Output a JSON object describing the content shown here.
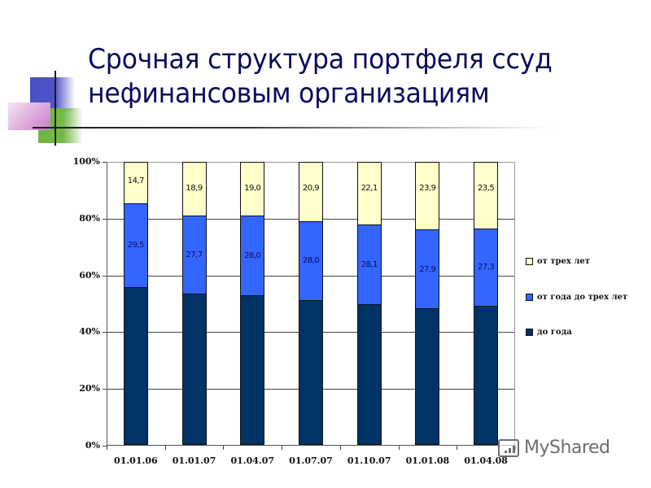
{
  "slide": {
    "title_line1": "Срочная структура портфеля ссуд",
    "title_line2": "нефинансовым организациям"
  },
  "watermark": {
    "text": "MyShared",
    "icon": "presentation-chart-icon"
  },
  "colors": {
    "short_term": "#003366",
    "mid_term": "#3366FF",
    "long_term": "#FFFFCC",
    "title": "#0B0B5C"
  },
  "axis": {
    "y_ticks": [
      "0%",
      "20%",
      "40%",
      "60%",
      "80%",
      "100%"
    ],
    "x_ticks": [
      "01.01.06",
      "01.01.07",
      "01.04.07",
      "01.07.07",
      "01.10.07",
      "01.01.08",
      "01.04.08"
    ]
  },
  "legend": [
    {
      "label": "от трех лет",
      "color": "#FFFFCC"
    },
    {
      "label": "от года до трех лет",
      "color": "#3366FF"
    },
    {
      "label": "до года",
      "color": "#003366"
    }
  ],
  "bars": [
    {
      "date": "01.01.06",
      "long": "14,7",
      "mid": "29,5",
      "short_pct": 55.8,
      "mid_pct": 29.5,
      "long_pct": 14.7
    },
    {
      "date": "01.01.07",
      "long": "18,9",
      "mid": "27,7",
      "short_pct": 53.4,
      "mid_pct": 27.7,
      "long_pct": 18.9
    },
    {
      "date": "01.04.07",
      "long": "19,0",
      "mid": "28,0",
      "short_pct": 53.0,
      "mid_pct": 28.0,
      "long_pct": 19.0
    },
    {
      "date": "01.07.07",
      "long": "20,9",
      "mid": "28,0",
      "short_pct": 51.1,
      "mid_pct": 28.0,
      "long_pct": 20.9
    },
    {
      "date": "01.10.07",
      "long": "22,1",
      "mid": "28,1",
      "short_pct": 49.8,
      "mid_pct": 28.1,
      "long_pct": 22.1
    },
    {
      "date": "01.01.08",
      "long": "23,9",
      "mid": "27,9",
      "short_pct": 48.2,
      "mid_pct": 27.9,
      "long_pct": 23.9
    },
    {
      "date": "01.04.08",
      "long": "23,5",
      "mid": "27,3",
      "short_pct": 49.2,
      "mid_pct": 27.3,
      "long_pct": 23.5
    }
  ],
  "chart_data": {
    "type": "bar",
    "stacked": true,
    "percent_stacked": true,
    "title": "Срочная структура портфеля ссуд нефинансовым организациям",
    "xlabel": "",
    "ylabel": "",
    "categories": [
      "01.01.06",
      "01.01.07",
      "01.04.07",
      "01.07.07",
      "01.10.07",
      "01.01.08",
      "01.04.08"
    ],
    "series": [
      {
        "name": "до года",
        "color": "#003366",
        "values": [
          55.8,
          53.4,
          53.0,
          51.1,
          49.8,
          48.2,
          49.2
        ],
        "labeled": false
      },
      {
        "name": "от года до трех лет",
        "color": "#3366FF",
        "values": [
          29.5,
          27.7,
          28.0,
          28.0,
          28.1,
          27.9,
          27.3
        ],
        "labeled": true
      },
      {
        "name": "от трех лет",
        "color": "#FFFFCC",
        "values": [
          14.7,
          18.9,
          19.0,
          20.9,
          22.1,
          23.9,
          23.5
        ],
        "labeled": true
      }
    ],
    "ylim": [
      0,
      100
    ],
    "y_tick_labels": [
      "0%",
      "20%",
      "40%",
      "60%",
      "80%",
      "100%"
    ],
    "grid": {
      "horizontal": true,
      "vertical": false
    },
    "legend_position": "right"
  }
}
